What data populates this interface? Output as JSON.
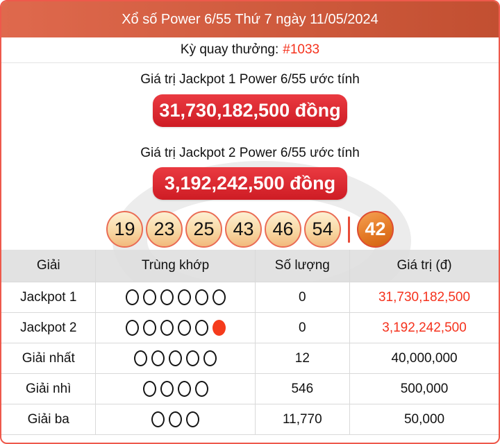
{
  "header": {
    "title": "Xổ số Power 6/55 Thứ 7 ngày 11/05/2024"
  },
  "draw": {
    "label": "Kỳ quay thưởng:",
    "number": "#1033"
  },
  "jackpot1": {
    "label": "Giá trị Jackpot 1 Power 6/55 ước tính",
    "value": "31,730,182,500 đồng"
  },
  "jackpot2": {
    "label": "Giá trị Jackpot 2 Power 6/55 ước tính",
    "value": "3,192,242,500 đồng"
  },
  "balls": {
    "main": [
      "19",
      "23",
      "25",
      "43",
      "46",
      "54"
    ],
    "special": "42"
  },
  "results_table": {
    "headers": [
      "Giải",
      "Trùng khớp",
      "Số lượng",
      "Giá trị (đ)"
    ],
    "rows": [
      {
        "prize": "Jackpot 1",
        "match_open": 6,
        "match_filled": 0,
        "count": "0",
        "value": "31,730,182,500",
        "value_red": true
      },
      {
        "prize": "Jackpot 2",
        "match_open": 5,
        "match_filled": 1,
        "count": "0",
        "value": "3,192,242,500",
        "value_red": true
      },
      {
        "prize": "Giải nhất",
        "match_open": 5,
        "match_filled": 0,
        "count": "12",
        "value": "40,000,000",
        "value_red": false
      },
      {
        "prize": "Giải nhì",
        "match_open": 4,
        "match_filled": 0,
        "count": "546",
        "value": "500,000",
        "value_red": false
      },
      {
        "prize": "Giải ba",
        "match_open": 3,
        "match_filled": 0,
        "count": "11,770",
        "value": "50,000",
        "value_red": false
      }
    ]
  },
  "colors": {
    "card_border": "#ee594b",
    "header_gradient_start": "#df694d",
    "header_gradient_end": "#c24f31",
    "accent_red": "#f5311c",
    "button_gradient_start": "#ea3a41",
    "button_gradient_end": "#ce1c24",
    "ball_border": "#ea6c55",
    "special_ball": "#e47a26",
    "table_header_bg": "#e4e4e4"
  }
}
